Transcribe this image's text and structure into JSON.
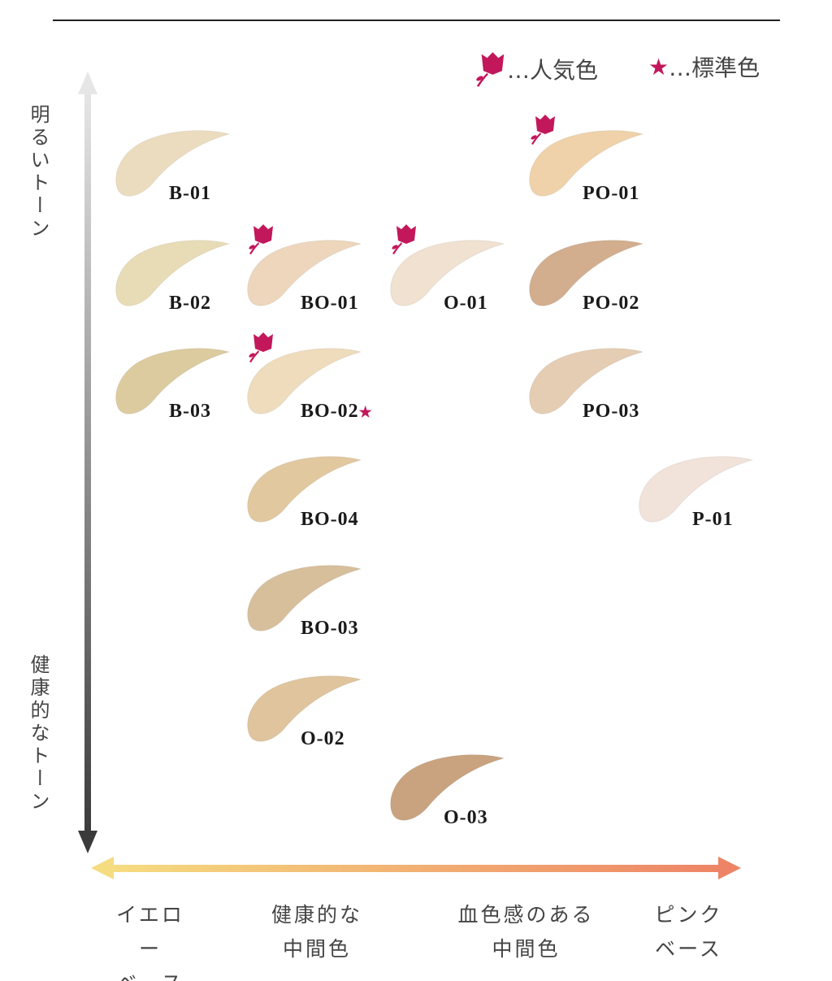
{
  "legend": {
    "popular_text": "…人気色",
    "standard_text": "…標準色",
    "popular_icon": "rose-icon",
    "standard_icon": "star-icon",
    "accent_color": "#c2185b"
  },
  "axes": {
    "vertical_top": "明るいトーン",
    "vertical_bottom": "健康的なトーン",
    "horizontal": [
      {
        "line1": "イエロー",
        "line2": "ベース"
      },
      {
        "line1": "健康的な",
        "line2": "中間色"
      },
      {
        "line1": "血色感のある",
        "line2": "中間色"
      },
      {
        "line1": "ピンク",
        "line2": "ベース"
      }
    ]
  },
  "shades": [
    {
      "name": "B-01",
      "color": "#ecdcbf",
      "popular": false,
      "standard": false
    },
    {
      "name": "B-02",
      "color": "#e8dcb6",
      "popular": false,
      "standard": false
    },
    {
      "name": "B-03",
      "color": "#dccb9f",
      "popular": false,
      "standard": false
    },
    {
      "name": "BO-01",
      "color": "#edd6bc",
      "popular": true,
      "standard": false
    },
    {
      "name": "BO-02",
      "color": "#eedcbc",
      "popular": true,
      "standard": true
    },
    {
      "name": "BO-04",
      "color": "#e2c89f",
      "popular": false,
      "standard": false
    },
    {
      "name": "BO-03",
      "color": "#d7bf9c",
      "popular": false,
      "standard": false
    },
    {
      "name": "O-02",
      "color": "#dfc49d",
      "popular": false,
      "standard": false
    },
    {
      "name": "O-01",
      "color": "#f0e1d0",
      "popular": true,
      "standard": false
    },
    {
      "name": "O-03",
      "color": "#c9a37f",
      "popular": false,
      "standard": false
    },
    {
      "name": "PO-01",
      "color": "#efd2a9",
      "popular": true,
      "standard": false
    },
    {
      "name": "PO-02",
      "color": "#d2ae8e",
      "popular": false,
      "standard": false
    },
    {
      "name": "PO-03",
      "color": "#e4cdb2",
      "popular": false,
      "standard": false
    },
    {
      "name": "P-01",
      "color": "#f1e2da",
      "popular": false,
      "standard": false
    }
  ]
}
